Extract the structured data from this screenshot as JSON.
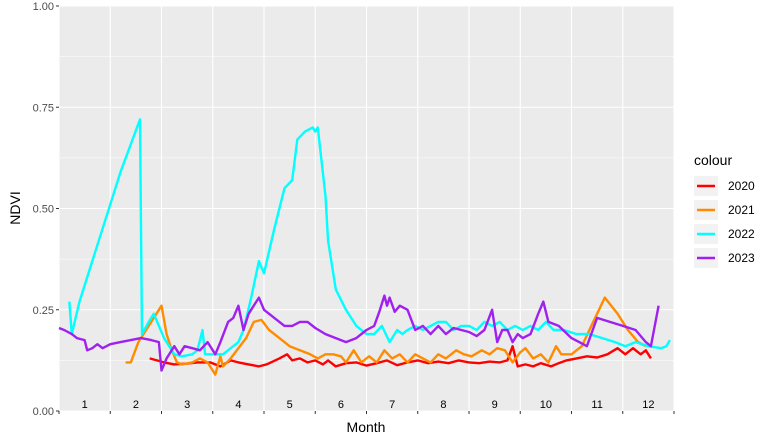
{
  "chart_data": {
    "type": "line",
    "xlabel": "Month",
    "ylabel": "NDVI",
    "ylim": [
      0,
      1
    ],
    "xlim": [
      0.5,
      12.5
    ],
    "y_ticks": [
      "0.00",
      "0.25",
      "0.50",
      "0.75",
      "1.00"
    ],
    "x_tick_labels": [
      "1",
      "2",
      "3",
      "4",
      "5",
      "6",
      "7",
      "8",
      "9",
      "10",
      "11",
      "12"
    ],
    "grid": true,
    "legend": {
      "title": "colour",
      "placement": "right"
    },
    "series": [
      {
        "name": "2020",
        "color": "#FF0000",
        "points": [
          [
            2.27,
            0.13
          ],
          [
            2.55,
            0.12
          ],
          [
            2.75,
            0.115
          ],
          [
            3.0,
            0.117
          ],
          [
            3.2,
            0.12
          ],
          [
            3.45,
            0.12
          ],
          [
            3.65,
            0.11
          ],
          [
            3.85,
            0.125
          ],
          [
            4.0,
            0.12
          ],
          [
            4.2,
            0.115
          ],
          [
            4.4,
            0.11
          ],
          [
            4.55,
            0.115
          ],
          [
            4.8,
            0.13
          ],
          [
            4.95,
            0.14
          ],
          [
            5.05,
            0.125
          ],
          [
            5.2,
            0.13
          ],
          [
            5.35,
            0.12
          ],
          [
            5.5,
            0.125
          ],
          [
            5.65,
            0.115
          ],
          [
            5.75,
            0.125
          ],
          [
            5.9,
            0.11
          ],
          [
            6.1,
            0.118
          ],
          [
            6.3,
            0.12
          ],
          [
            6.5,
            0.112
          ],
          [
            6.7,
            0.118
          ],
          [
            6.9,
            0.125
          ],
          [
            7.1,
            0.113
          ],
          [
            7.3,
            0.12
          ],
          [
            7.5,
            0.125
          ],
          [
            7.7,
            0.118
          ],
          [
            7.9,
            0.122
          ],
          [
            8.1,
            0.118
          ],
          [
            8.3,
            0.125
          ],
          [
            8.5,
            0.12
          ],
          [
            8.7,
            0.118
          ],
          [
            8.9,
            0.122
          ],
          [
            9.1,
            0.12
          ],
          [
            9.25,
            0.125
          ],
          [
            9.35,
            0.16
          ],
          [
            9.45,
            0.11
          ],
          [
            9.6,
            0.115
          ],
          [
            9.75,
            0.11
          ],
          [
            9.9,
            0.118
          ],
          [
            10.1,
            0.11
          ],
          [
            10.25,
            0.118
          ],
          [
            10.4,
            0.125
          ],
          [
            10.6,
            0.13
          ],
          [
            10.8,
            0.135
          ],
          [
            11.0,
            0.132
          ],
          [
            11.2,
            0.14
          ],
          [
            11.4,
            0.155
          ],
          [
            11.55,
            0.14
          ],
          [
            11.7,
            0.155
          ],
          [
            11.85,
            0.14
          ],
          [
            11.95,
            0.15
          ],
          [
            12.05,
            0.13
          ]
        ]
      },
      {
        "name": "2021",
        "color": "#FF8C00",
        "points": [
          [
            1.8,
            0.12
          ],
          [
            1.9,
            0.12
          ],
          [
            2.05,
            0.17
          ],
          [
            2.2,
            0.2
          ],
          [
            2.4,
            0.24
          ],
          [
            2.5,
            0.26
          ],
          [
            2.6,
            0.19
          ],
          [
            2.7,
            0.15
          ],
          [
            2.8,
            0.12
          ],
          [
            2.9,
            0.115
          ],
          [
            3.1,
            0.12
          ],
          [
            3.25,
            0.13
          ],
          [
            3.4,
            0.12
          ],
          [
            3.55,
            0.09
          ],
          [
            3.65,
            0.135
          ],
          [
            3.7,
            0.11
          ],
          [
            3.85,
            0.13
          ],
          [
            4.0,
            0.155
          ],
          [
            4.15,
            0.18
          ],
          [
            4.3,
            0.22
          ],
          [
            4.45,
            0.225
          ],
          [
            4.6,
            0.2
          ],
          [
            4.8,
            0.18
          ],
          [
            5.0,
            0.16
          ],
          [
            5.2,
            0.15
          ],
          [
            5.4,
            0.14
          ],
          [
            5.55,
            0.13
          ],
          [
            5.7,
            0.14
          ],
          [
            5.85,
            0.14
          ],
          [
            6.0,
            0.135
          ],
          [
            6.1,
            0.12
          ],
          [
            6.25,
            0.15
          ],
          [
            6.4,
            0.12
          ],
          [
            6.55,
            0.135
          ],
          [
            6.7,
            0.12
          ],
          [
            6.85,
            0.15
          ],
          [
            7.0,
            0.13
          ],
          [
            7.15,
            0.14
          ],
          [
            7.3,
            0.12
          ],
          [
            7.45,
            0.14
          ],
          [
            7.6,
            0.13
          ],
          [
            7.75,
            0.12
          ],
          [
            7.9,
            0.14
          ],
          [
            8.05,
            0.13
          ],
          [
            8.25,
            0.15
          ],
          [
            8.4,
            0.14
          ],
          [
            8.55,
            0.135
          ],
          [
            8.75,
            0.15
          ],
          [
            8.9,
            0.14
          ],
          [
            9.05,
            0.155
          ],
          [
            9.2,
            0.15
          ],
          [
            9.35,
            0.12
          ],
          [
            9.5,
            0.145
          ],
          [
            9.6,
            0.155
          ],
          [
            9.75,
            0.13
          ],
          [
            9.9,
            0.14
          ],
          [
            10.05,
            0.12
          ],
          [
            10.2,
            0.16
          ],
          [
            10.3,
            0.14
          ],
          [
            10.5,
            0.14
          ],
          [
            10.7,
            0.16
          ],
          [
            10.85,
            0.2
          ],
          [
            11.0,
            0.24
          ],
          [
            11.15,
            0.28
          ],
          [
            11.4,
            0.24
          ],
          [
            11.6,
            0.2
          ],
          [
            11.8,
            0.17
          ],
          [
            11.95,
            0.16
          ]
        ]
      },
      {
        "name": "2022",
        "color": "#00FFFF",
        "points": [
          [
            0.7,
            0.27
          ],
          [
            0.75,
            0.19
          ],
          [
            0.9,
            0.27
          ],
          [
            1.3,
            0.43
          ],
          [
            1.7,
            0.59
          ],
          [
            2.08,
            0.72
          ],
          [
            2.12,
            0.19
          ],
          [
            2.25,
            0.22
          ],
          [
            2.35,
            0.24
          ],
          [
            2.55,
            0.18
          ],
          [
            2.65,
            0.16
          ],
          [
            2.75,
            0.14
          ],
          [
            2.9,
            0.135
          ],
          [
            3.1,
            0.14
          ],
          [
            3.2,
            0.15
          ],
          [
            3.3,
            0.2
          ],
          [
            3.35,
            0.14
          ],
          [
            3.5,
            0.14
          ],
          [
            3.7,
            0.14
          ],
          [
            3.9,
            0.16
          ],
          [
            4.0,
            0.17
          ],
          [
            4.1,
            0.2
          ],
          [
            4.25,
            0.28
          ],
          [
            4.4,
            0.37
          ],
          [
            4.5,
            0.34
          ],
          [
            4.7,
            0.45
          ],
          [
            4.9,
            0.55
          ],
          [
            5.05,
            0.57
          ],
          [
            5.15,
            0.67
          ],
          [
            5.3,
            0.69
          ],
          [
            5.45,
            0.7
          ],
          [
            5.5,
            0.69
          ],
          [
            5.55,
            0.7
          ],
          [
            5.7,
            0.53
          ],
          [
            5.75,
            0.42
          ],
          [
            5.9,
            0.3
          ],
          [
            6.1,
            0.25
          ],
          [
            6.3,
            0.21
          ],
          [
            6.5,
            0.19
          ],
          [
            6.65,
            0.19
          ],
          [
            6.8,
            0.21
          ],
          [
            6.95,
            0.17
          ],
          [
            7.1,
            0.2
          ],
          [
            7.2,
            0.19
          ],
          [
            7.3,
            0.2
          ],
          [
            7.45,
            0.21
          ],
          [
            7.6,
            0.2
          ],
          [
            7.75,
            0.21
          ],
          [
            7.9,
            0.22
          ],
          [
            8.05,
            0.22
          ],
          [
            8.2,
            0.2
          ],
          [
            8.35,
            0.21
          ],
          [
            8.5,
            0.21
          ],
          [
            8.65,
            0.2
          ],
          [
            8.8,
            0.22
          ],
          [
            8.95,
            0.21
          ],
          [
            9.1,
            0.22
          ],
          [
            9.25,
            0.2
          ],
          [
            9.4,
            0.21
          ],
          [
            9.55,
            0.2
          ],
          [
            9.7,
            0.21
          ],
          [
            9.85,
            0.2
          ],
          [
            10.0,
            0.22
          ],
          [
            10.15,
            0.2
          ],
          [
            10.35,
            0.2
          ],
          [
            10.6,
            0.19
          ],
          [
            10.85,
            0.19
          ],
          [
            11.1,
            0.18
          ],
          [
            11.35,
            0.17
          ],
          [
            11.55,
            0.16
          ],
          [
            11.75,
            0.17
          ],
          [
            12.0,
            0.16
          ],
          [
            12.25,
            0.155
          ],
          [
            12.35,
            0.16
          ],
          [
            12.42,
            0.175
          ]
        ]
      },
      {
        "name": "2023",
        "color": "#A020F0",
        "points": [
          [
            0.5,
            0.205
          ],
          [
            0.6,
            0.2
          ],
          [
            0.75,
            0.19
          ],
          [
            0.85,
            0.18
          ],
          [
            1.0,
            0.175
          ],
          [
            1.05,
            0.15
          ],
          [
            1.15,
            0.155
          ],
          [
            1.25,
            0.165
          ],
          [
            1.35,
            0.155
          ],
          [
            1.5,
            0.165
          ],
          [
            1.7,
            0.17
          ],
          [
            1.9,
            0.175
          ],
          [
            2.1,
            0.18
          ],
          [
            2.3,
            0.175
          ],
          [
            2.45,
            0.17
          ],
          [
            2.5,
            0.1
          ],
          [
            2.6,
            0.13
          ],
          [
            2.75,
            0.16
          ],
          [
            2.85,
            0.14
          ],
          [
            2.95,
            0.16
          ],
          [
            3.1,
            0.155
          ],
          [
            3.25,
            0.15
          ],
          [
            3.4,
            0.17
          ],
          [
            3.55,
            0.14
          ],
          [
            3.65,
            0.17
          ],
          [
            3.8,
            0.22
          ],
          [
            3.9,
            0.23
          ],
          [
            4.0,
            0.26
          ],
          [
            4.1,
            0.2
          ],
          [
            4.2,
            0.24
          ],
          [
            4.4,
            0.28
          ],
          [
            4.5,
            0.25
          ],
          [
            4.6,
            0.24
          ],
          [
            4.8,
            0.22
          ],
          [
            4.9,
            0.21
          ],
          [
            5.05,
            0.21
          ],
          [
            5.2,
            0.22
          ],
          [
            5.35,
            0.22
          ],
          [
            5.5,
            0.205
          ],
          [
            5.7,
            0.19
          ],
          [
            5.9,
            0.18
          ],
          [
            6.1,
            0.17
          ],
          [
            6.3,
            0.18
          ],
          [
            6.5,
            0.2
          ],
          [
            6.65,
            0.21
          ],
          [
            6.75,
            0.245
          ],
          [
            6.85,
            0.285
          ],
          [
            6.9,
            0.26
          ],
          [
            6.95,
            0.28
          ],
          [
            7.05,
            0.245
          ],
          [
            7.15,
            0.26
          ],
          [
            7.3,
            0.25
          ],
          [
            7.45,
            0.2
          ],
          [
            7.6,
            0.21
          ],
          [
            7.75,
            0.19
          ],
          [
            7.9,
            0.21
          ],
          [
            8.05,
            0.19
          ],
          [
            8.2,
            0.205
          ],
          [
            8.35,
            0.2
          ],
          [
            8.5,
            0.195
          ],
          [
            8.65,
            0.185
          ],
          [
            8.8,
            0.2
          ],
          [
            8.95,
            0.25
          ],
          [
            9.05,
            0.17
          ],
          [
            9.15,
            0.2
          ],
          [
            9.25,
            0.2
          ],
          [
            9.35,
            0.17
          ],
          [
            9.45,
            0.19
          ],
          [
            9.55,
            0.18
          ],
          [
            9.7,
            0.19
          ],
          [
            9.85,
            0.24
          ],
          [
            9.95,
            0.27
          ],
          [
            10.05,
            0.22
          ],
          [
            10.25,
            0.21
          ],
          [
            10.5,
            0.18
          ],
          [
            10.65,
            0.17
          ],
          [
            10.8,
            0.16
          ],
          [
            11.0,
            0.23
          ],
          [
            11.25,
            0.22
          ],
          [
            11.5,
            0.21
          ],
          [
            11.75,
            0.2
          ],
          [
            11.95,
            0.17
          ],
          [
            12.05,
            0.16
          ],
          [
            12.2,
            0.26
          ]
        ]
      }
    ]
  }
}
